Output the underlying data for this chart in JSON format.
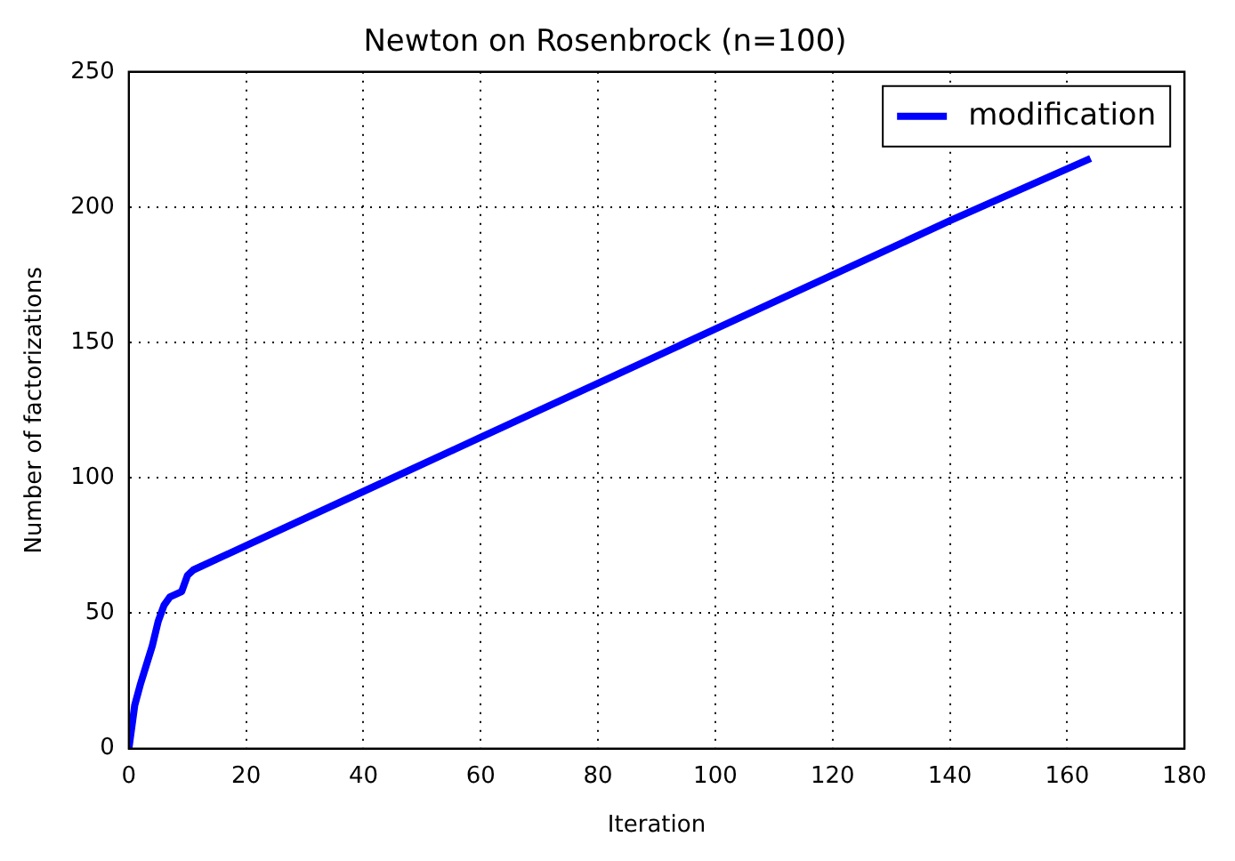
{
  "chart_data": {
    "type": "line",
    "title": "Newton on Rosenbrock (n=100)",
    "xlabel": "Iteration",
    "ylabel": "Number of factorizations",
    "series": [
      {
        "name": "modification",
        "color": "#0000ff",
        "x": [
          0,
          1,
          2,
          3,
          4,
          5,
          6,
          7,
          8,
          9,
          10,
          11,
          20,
          40,
          60,
          80,
          100,
          120,
          140,
          164
        ],
        "values": [
          0,
          16,
          24,
          31,
          38,
          47,
          53,
          56,
          57,
          58,
          64,
          66,
          75,
          95,
          115,
          135,
          155,
          175,
          195,
          218
        ]
      }
    ],
    "xlim": [
      0,
      180
    ],
    "ylim": [
      0,
      250
    ],
    "xticks": [
      0,
      20,
      40,
      60,
      80,
      100,
      120,
      140,
      160,
      180
    ],
    "yticks": [
      0,
      50,
      100,
      150,
      200,
      250
    ],
    "grid": true,
    "legend": "top right",
    "marker": "none",
    "line_style": "solid"
  }
}
